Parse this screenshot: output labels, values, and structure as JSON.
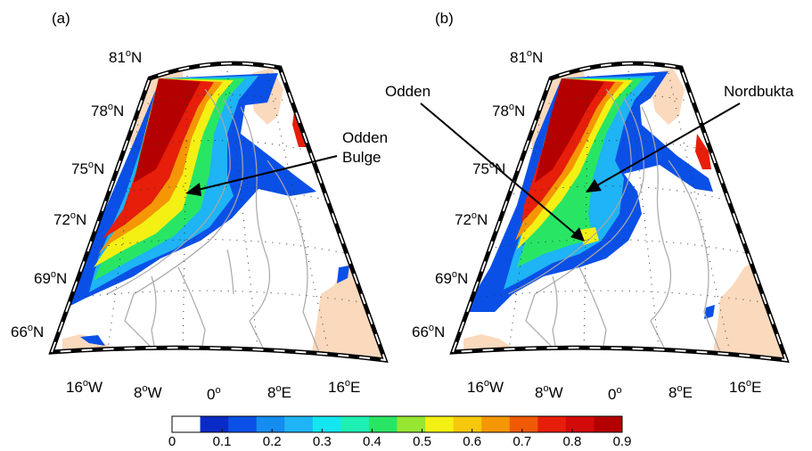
{
  "panels": [
    {
      "label": "(a)",
      "lat_labels": [
        "81",
        "78",
        "75",
        "72",
        "69",
        "66"
      ],
      "lat_suffix": "N",
      "lon_labels": [
        "16",
        "8",
        "0",
        "8",
        "16"
      ],
      "lon_suffix": [
        "W",
        "W",
        "",
        "E",
        "E"
      ],
      "annotations": [
        {
          "lines": [
            "Odden",
            "Bulge"
          ]
        }
      ]
    },
    {
      "label": "(b)",
      "lat_labels": [
        "81",
        "78",
        "75",
        "72",
        "69",
        "66"
      ],
      "lat_suffix": "N",
      "lon_labels": [
        "16",
        "8",
        "0",
        "8",
        "16"
      ],
      "lon_suffix": [
        "W",
        "W",
        "",
        "E",
        "E"
      ],
      "annotations": [
        {
          "lines": [
            "Odden"
          ]
        },
        {
          "lines": [
            "Nordbukta"
          ]
        }
      ]
    }
  ],
  "degree_symbol": "o",
  "colorbar": {
    "ticks": [
      "0",
      "0.1",
      "0.2",
      "0.3",
      "0.4",
      "0.5",
      "0.6",
      "0.7",
      "0.8",
      "0.9"
    ],
    "colors": [
      "#ffffff",
      "#0a2ac8",
      "#0a50e6",
      "#148cf0",
      "#1eb4f5",
      "#14e6f0",
      "#1ef0b4",
      "#28e664",
      "#96e632",
      "#f5f014",
      "#f5c80a",
      "#f59605",
      "#f05a05",
      "#e61e0a",
      "#d20a0a",
      "#b40000"
    ]
  },
  "colors": {
    "land": "#fad9bd",
    "ice_edge": "#b40000",
    "contour": "#a8a8a8"
  }
}
